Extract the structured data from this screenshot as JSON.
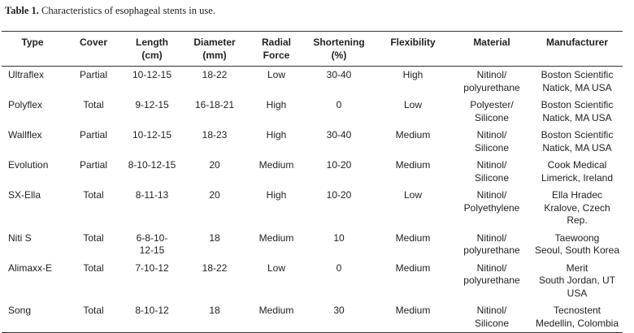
{
  "caption": {
    "label": "Table 1.",
    "text": "Characteristics of esophageal stents in use."
  },
  "table": {
    "header": [
      "Type",
      "Cover",
      "Length\n(cm)",
      "Diameter\n(mm)",
      "Radial\nForce",
      "Shortening\n(%)",
      "Flexibility",
      "Material",
      "Manufacturer"
    ],
    "rows": [
      [
        "Ultraflex",
        "Partial",
        "10-12-15",
        "18-22",
        "Low",
        "30-40",
        "High",
        "Nitinol/\npolyurethane",
        "Boston Scientific\nNatick, MA USA"
      ],
      [
        "Polyflex",
        "Total",
        "9-12-15",
        "16-18-21",
        "High",
        "0",
        "Low",
        "Polyester/\nSilicone",
        "Boston Scientific\nNatick, MA USA"
      ],
      [
        "Wallflex",
        "Partial",
        "10-12-15",
        "18-23",
        "High",
        "30-40",
        "Medium",
        "Nitinol/\nSilicone",
        "Boston Scientific\nNatick, MA USA"
      ],
      [
        "Evolution",
        "Partial",
        "8-10-12-15",
        "20",
        "Medium",
        "10-20",
        "Medium",
        "Nitinol/\nSilicone",
        "Cook Medical\nLimerick, Ireland"
      ],
      [
        "SX-Ella",
        "Total",
        "8-11-13",
        "20",
        "High",
        "10-20",
        "Low",
        "Nitinol/\nPolyethylene",
        "Ella Hradec\nKralove, Czech Rep."
      ],
      [
        "Niti S",
        "Total",
        "6-8-10-\n12-15",
        "18",
        "Medium",
        "10",
        "Medium",
        "Nitinol/\npolyurethane",
        "Taewoong\nSeoul, South Korea"
      ],
      [
        "Alimaxx-E",
        "Total",
        "7-10-12",
        "18-22",
        "Low",
        "0",
        "Medium",
        "Nitinol/\npolyurethane",
        "Merit\nSouth Jordan, UT\nUSA"
      ],
      [
        "Song",
        "Total",
        "8-10-12",
        "18",
        "Medium",
        "30",
        "Medium",
        "Nitinol/\nSilicone",
        "Tecnostent\nMedellin, Colombia"
      ]
    ]
  }
}
